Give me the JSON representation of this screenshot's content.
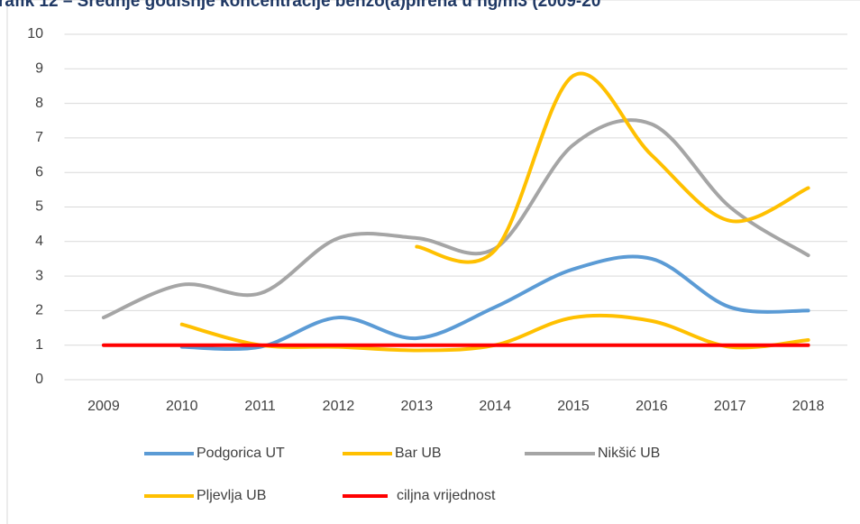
{
  "chart_data": {
    "type": "line",
    "title": "rafik 12 – Srednje godišnje koncentracije benzo(a)pirena u ng/m3 (2009-20",
    "categories": [
      "2009",
      "2010",
      "2011",
      "2012",
      "2013",
      "2014",
      "2015",
      "2016",
      "2017",
      "2018"
    ],
    "series": [
      {
        "name": "Podgorica UT",
        "color": "#5b9bd5",
        "values": [
          null,
          0.95,
          0.95,
          1.8,
          1.2,
          2.1,
          3.2,
          3.5,
          2.1,
          2.0
        ]
      },
      {
        "name": "Bar UB",
        "color": "#ffc000",
        "values": [
          null,
          1.6,
          1.0,
          0.95,
          0.85,
          1.0,
          1.8,
          1.7,
          0.95,
          1.15
        ]
      },
      {
        "name": "Nikšić UB",
        "color": "#a5a5a5",
        "values": [
          1.8,
          2.75,
          2.5,
          4.1,
          4.1,
          3.8,
          6.8,
          7.4,
          5.0,
          3.6
        ]
      },
      {
        "name": "Pljevlja UB",
        "color": "#ffc000",
        "values": [
          null,
          null,
          null,
          null,
          3.85,
          3.75,
          8.8,
          6.5,
          4.6,
          5.55
        ]
      },
      {
        "name": "ciljna vrijednost",
        "color": "#ff0000",
        "values": [
          1,
          1,
          1,
          1,
          1,
          1,
          1,
          1,
          1,
          1
        ]
      }
    ],
    "ylim": [
      0,
      10
    ],
    "yticks": [
      0,
      1,
      2,
      3,
      4,
      5,
      6,
      7,
      8,
      9,
      10
    ],
    "grid": true
  }
}
